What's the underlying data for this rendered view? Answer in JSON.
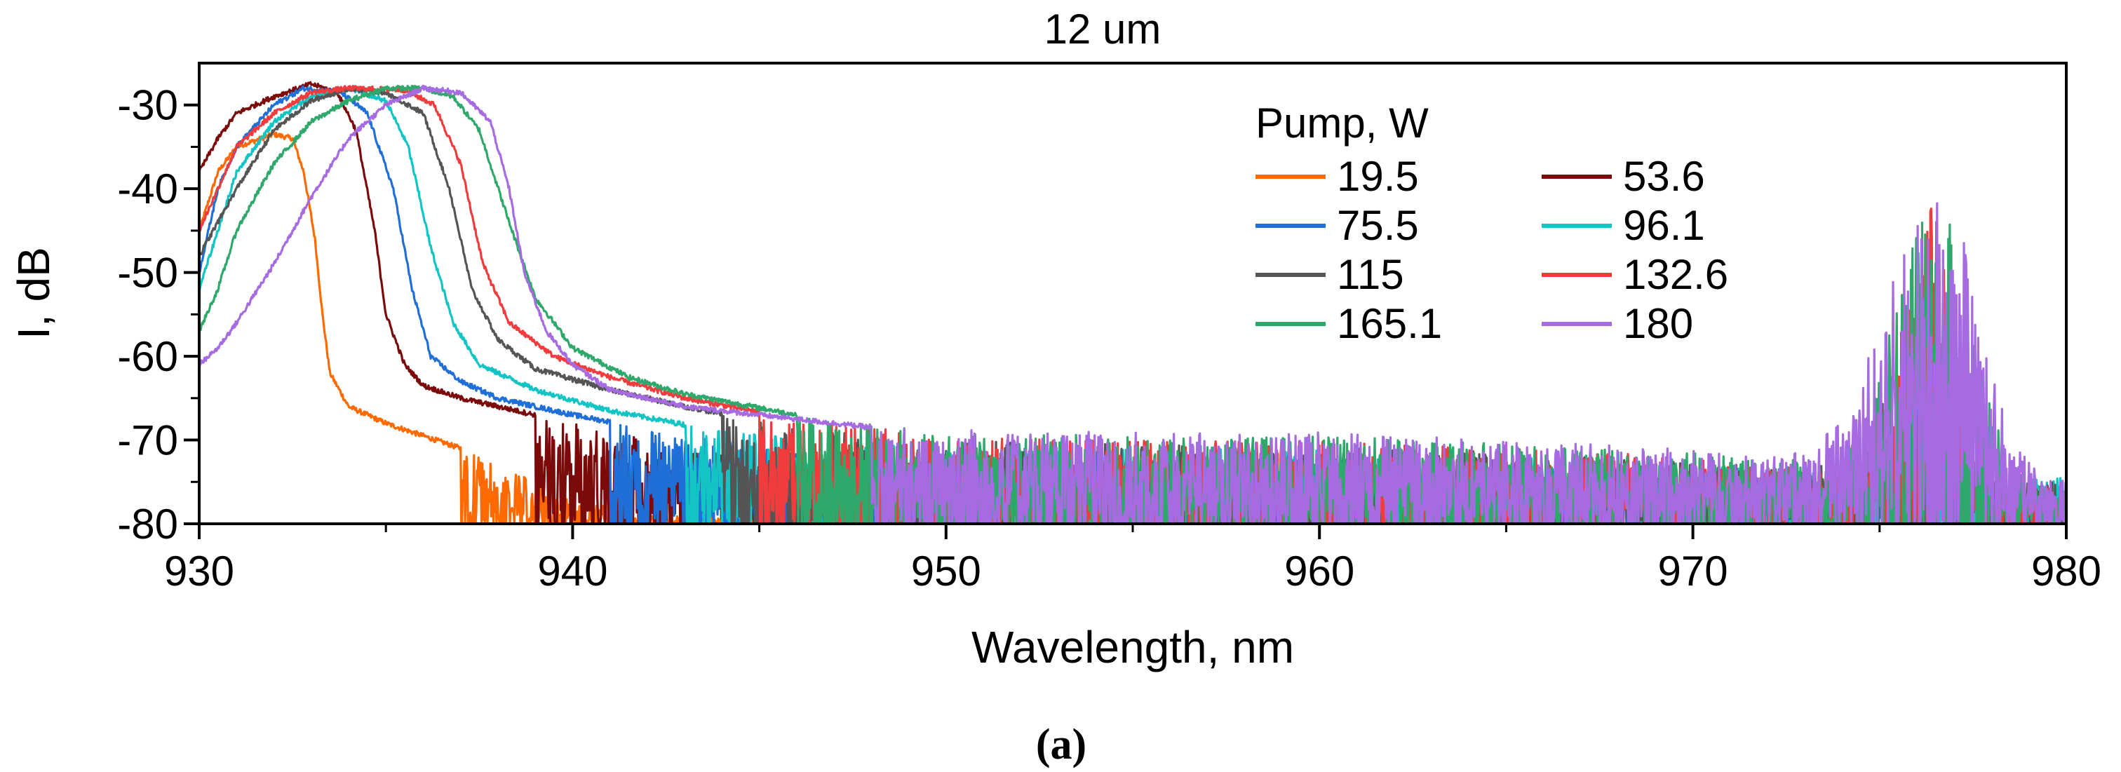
{
  "chart_data": {
    "type": "line",
    "title": "12 um",
    "xlabel": "Wavelength, nm",
    "ylabel": "I, dB",
    "xlim": [
      930,
      980
    ],
    "ylim": [
      -80,
      -25
    ],
    "xticks": [
      "930",
      "940",
      "950",
      "960",
      "970",
      "980"
    ],
    "yticks": [
      "-30",
      "-40",
      "-50",
      "-60",
      "-70",
      "-80"
    ],
    "legend_title": "Pump, W",
    "legend_position": "top-right",
    "caption": "(a)",
    "series": [
      {
        "name": "19.5",
        "color": "#ff6a00",
        "points": [
          [
            930,
            -45
          ],
          [
            930.5,
            -38
          ],
          [
            931,
            -35
          ],
          [
            932,
            -33.5
          ],
          [
            932.5,
            -34
          ],
          [
            932.8,
            -38
          ],
          [
            933.1,
            -46
          ],
          [
            933.3,
            -55
          ],
          [
            933.5,
            -62
          ],
          [
            934,
            -66
          ],
          [
            935,
            -68
          ],
          [
            936,
            -69.5
          ],
          [
            937,
            -71
          ],
          [
            938,
            -73
          ],
          [
            939,
            -75
          ],
          [
            940,
            -77
          ],
          [
            942,
            -79
          ],
          [
            950,
            -80
          ],
          [
            964,
            -80
          ]
        ],
        "noise_floor": -80,
        "noise_start": 937
      },
      {
        "name": "53.6",
        "color": "#7b0b0b",
        "points": [
          [
            930,
            -38
          ],
          [
            930.5,
            -34
          ],
          [
            931,
            -31
          ],
          [
            932,
            -29
          ],
          [
            933,
            -27.5
          ],
          [
            933.7,
            -28.5
          ],
          [
            934.2,
            -33
          ],
          [
            934.7,
            -45
          ],
          [
            935,
            -55
          ],
          [
            935.5,
            -61
          ],
          [
            936,
            -63.5
          ],
          [
            937,
            -65
          ],
          [
            938,
            -66
          ],
          [
            940,
            -68
          ],
          [
            942,
            -70
          ],
          [
            944,
            -71.5
          ],
          [
            948,
            -73
          ],
          [
            955,
            -74
          ],
          [
            962,
            -74.5
          ],
          [
            965,
            -75
          ]
        ],
        "noise_floor": -80,
        "noise_start": 939
      },
      {
        "name": "75.5",
        "color": "#1f6fd6",
        "points": [
          [
            930,
            -50
          ],
          [
            930.5,
            -40
          ],
          [
            931,
            -35
          ],
          [
            932,
            -30
          ],
          [
            932.8,
            -28
          ],
          [
            933.8,
            -28.5
          ],
          [
            934.5,
            -31
          ],
          [
            935.2,
            -40
          ],
          [
            935.7,
            -52
          ],
          [
            936.2,
            -60
          ],
          [
            937,
            -63
          ],
          [
            938,
            -65
          ],
          [
            940,
            -67
          ],
          [
            943,
            -69.5
          ],
          [
            946,
            -71
          ],
          [
            950,
            -72
          ],
          [
            955,
            -72
          ],
          [
            960,
            -72
          ],
          [
            965,
            -73
          ],
          [
            970,
            -74
          ],
          [
            975,
            -75
          ],
          [
            980,
            -75
          ]
        ],
        "noise_floor": -80,
        "noise_start": 941
      },
      {
        "name": "96.1",
        "color": "#13c4c4",
        "points": [
          [
            930,
            -52
          ],
          [
            930.5,
            -45
          ],
          [
            931,
            -38
          ],
          [
            932,
            -32
          ],
          [
            933,
            -29
          ],
          [
            934,
            -28
          ],
          [
            935,
            -29.5
          ],
          [
            935.6,
            -35
          ],
          [
            936.2,
            -47
          ],
          [
            936.8,
            -56
          ],
          [
            937.5,
            -61
          ],
          [
            939,
            -64
          ],
          [
            941,
            -66.5
          ],
          [
            944,
            -69
          ],
          [
            948,
            -70.5
          ],
          [
            952,
            -71
          ],
          [
            956,
            -71
          ],
          [
            960,
            -71
          ],
          [
            965,
            -72
          ],
          [
            970,
            -73
          ],
          [
            975,
            -74
          ],
          [
            980,
            -74.5
          ]
        ],
        "noise_floor": -80,
        "noise_start": 943
      },
      {
        "name": "115",
        "color": "#555555",
        "points": [
          [
            930,
            -48
          ],
          [
            930.5,
            -44
          ],
          [
            931,
            -40
          ],
          [
            932,
            -33
          ],
          [
            933,
            -29.5
          ],
          [
            934,
            -28
          ],
          [
            935,
            -28.5
          ],
          [
            936,
            -31
          ],
          [
            936.7,
            -40
          ],
          [
            937.3,
            -52
          ],
          [
            938,
            -58
          ],
          [
            939,
            -61.5
          ],
          [
            941,
            -64
          ],
          [
            943,
            -66
          ],
          [
            946,
            -68.5
          ],
          [
            950,
            -70
          ],
          [
            955,
            -70.5
          ],
          [
            960,
            -70.5
          ],
          [
            965,
            -71.5
          ],
          [
            970,
            -72.5
          ],
          [
            973,
            -73.5
          ],
          [
            974.5,
            -72
          ],
          [
            975.3,
            -62
          ],
          [
            975.8,
            -52
          ],
          [
            976.1,
            -49
          ],
          [
            976.4,
            -52
          ],
          [
            976.6,
            -64
          ],
          [
            976.8,
            -60.5
          ],
          [
            977.1,
            -62
          ],
          [
            977.4,
            -72
          ],
          [
            977.8,
            -75
          ],
          [
            980,
            -75
          ]
        ],
        "noise_floor": -80,
        "noise_start": 944
      },
      {
        "name": "132.6",
        "color": "#f03c3c",
        "points": [
          [
            930,
            -45
          ],
          [
            930.5,
            -40
          ],
          [
            931,
            -35
          ],
          [
            932,
            -31
          ],
          [
            933,
            -28.5
          ],
          [
            934,
            -28
          ],
          [
            935.5,
            -28.2
          ],
          [
            936.3,
            -30
          ],
          [
            937,
            -37
          ],
          [
            937.6,
            -49
          ],
          [
            938.3,
            -56
          ],
          [
            939.5,
            -60
          ],
          [
            941,
            -62.5
          ],
          [
            943,
            -65
          ],
          [
            946,
            -67.5
          ],
          [
            950,
            -69.5
          ],
          [
            955,
            -70
          ],
          [
            960,
            -70
          ],
          [
            965,
            -71
          ],
          [
            970,
            -72
          ],
          [
            974,
            -74
          ],
          [
            975.2,
            -70
          ],
          [
            975.7,
            -58
          ],
          [
            976.1,
            -46
          ],
          [
            976.4,
            -42
          ],
          [
            976.7,
            -45
          ],
          [
            977.1,
            -58
          ],
          [
            977.5,
            -70
          ],
          [
            978,
            -75
          ],
          [
            980,
            -76
          ]
        ],
        "noise_floor": -80,
        "noise_start": 945
      },
      {
        "name": "165.1",
        "color": "#2fa86b",
        "points": [
          [
            930,
            -57
          ],
          [
            930.5,
            -52
          ],
          [
            931,
            -45
          ],
          [
            932,
            -37
          ],
          [
            933,
            -32
          ],
          [
            934,
            -29.5
          ],
          [
            935,
            -28
          ],
          [
            936,
            -28
          ],
          [
            936.8,
            -29
          ],
          [
            937.5,
            -33
          ],
          [
            938.3,
            -44
          ],
          [
            939,
            -53
          ],
          [
            940,
            -59
          ],
          [
            941.5,
            -62.5
          ],
          [
            943,
            -64.5
          ],
          [
            946,
            -67
          ],
          [
            950,
            -69
          ],
          [
            955,
            -69.5
          ],
          [
            960,
            -69.5
          ],
          [
            965,
            -70.5
          ],
          [
            970,
            -71.5
          ],
          [
            973,
            -72.5
          ],
          [
            974,
            -72
          ],
          [
            974.8,
            -64
          ],
          [
            975.5,
            -54
          ],
          [
            976,
            -44
          ],
          [
            976.4,
            -39.5
          ],
          [
            976.8,
            -42
          ],
          [
            977.3,
            -52
          ],
          [
            977.8,
            -63
          ],
          [
            978.4,
            -72
          ],
          [
            979,
            -75
          ],
          [
            980,
            -76
          ]
        ],
        "noise_floor": -80,
        "noise_start": 946
      },
      {
        "name": "180",
        "color": "#a66be0",
        "points": [
          [
            930,
            -61
          ],
          [
            930.5,
            -59
          ],
          [
            931,
            -56
          ],
          [
            932,
            -49
          ],
          [
            933,
            -41
          ],
          [
            934,
            -34
          ],
          [
            935,
            -30
          ],
          [
            936,
            -28
          ],
          [
            937,
            -28.5
          ],
          [
            937.8,
            -32
          ],
          [
            938.3,
            -40
          ],
          [
            938.7,
            -50
          ],
          [
            939.3,
            -57
          ],
          [
            940,
            -61
          ],
          [
            941,
            -64
          ],
          [
            942,
            -65
          ],
          [
            943,
            -66
          ],
          [
            945,
            -67
          ],
          [
            948,
            -68.5
          ],
          [
            952,
            -69
          ],
          [
            956,
            -69
          ],
          [
            960,
            -69
          ],
          [
            965,
            -70
          ],
          [
            970,
            -71
          ],
          [
            972,
            -72
          ],
          [
            973.3,
            -71
          ],
          [
            974.3,
            -65
          ],
          [
            975,
            -56
          ],
          [
            975.7,
            -46
          ],
          [
            976.3,
            -39.5
          ],
          [
            976.9,
            -41
          ],
          [
            977.5,
            -50
          ],
          [
            978,
            -61
          ],
          [
            978.6,
            -70
          ],
          [
            979.3,
            -74
          ],
          [
            980,
            -75
          ]
        ],
        "noise_floor": -80,
        "noise_start": 948
      }
    ]
  }
}
